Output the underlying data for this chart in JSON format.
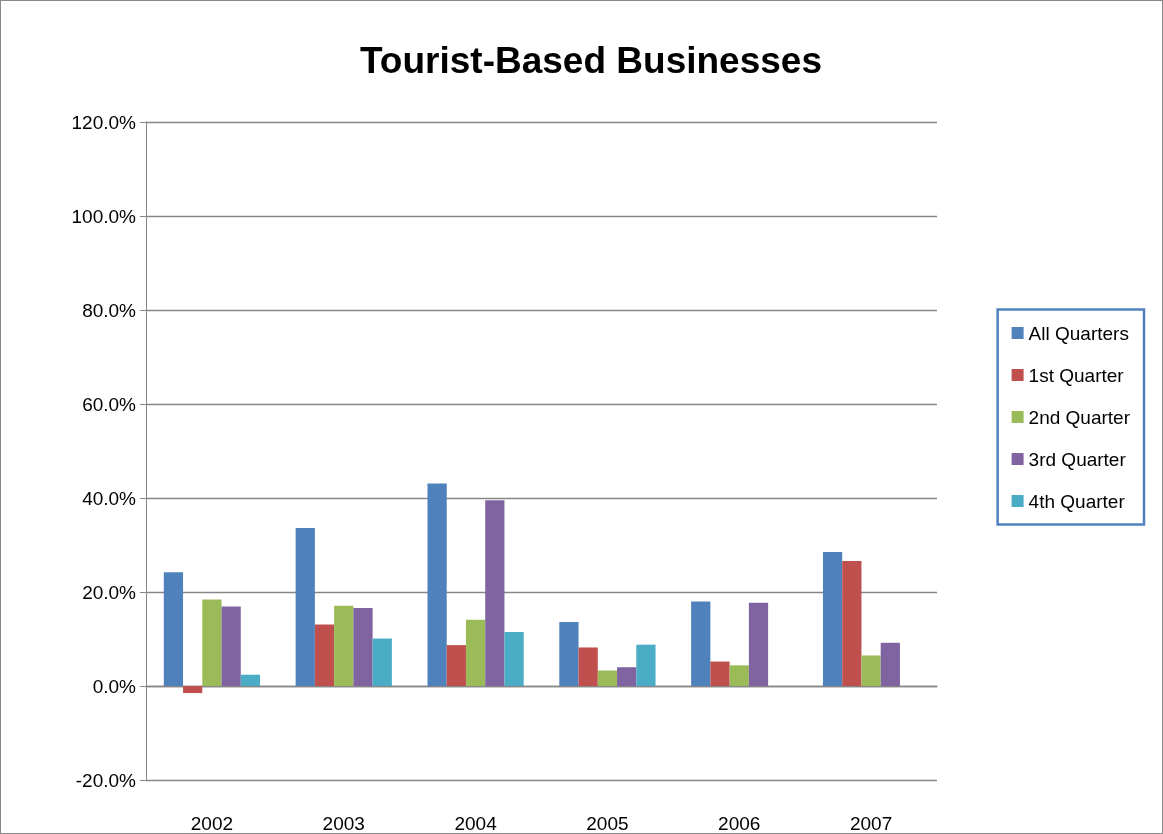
{
  "chart_data": {
    "type": "bar",
    "title": "Tourist-Based Businesses",
    "categories": [
      "2002",
      "2003",
      "2004",
      "2005",
      "2006",
      "2007"
    ],
    "series": [
      {
        "name": "All Quarters",
        "color": "#4f81bd",
        "values": [
          24.2,
          33.6,
          43.1,
          13.6,
          18.0,
          28.5
        ]
      },
      {
        "name": "1st Quarter",
        "color": "#c0504d",
        "values": [
          -1.5,
          13.1,
          8.7,
          8.2,
          5.2,
          26.6
        ]
      },
      {
        "name": "2nd Quarter",
        "color": "#9bbb59",
        "values": [
          18.4,
          17.1,
          14.1,
          3.3,
          4.4,
          6.5
        ]
      },
      {
        "name": "3rd Quarter",
        "color": "#8064a2",
        "values": [
          16.9,
          16.6,
          39.5,
          4.0,
          17.7,
          9.2
        ]
      },
      {
        "name": "4th Quarter",
        "color": "#4bacc6",
        "values": [
          2.4,
          10.1,
          11.5,
          8.8,
          null,
          null
        ]
      }
    ],
    "ylim": [
      -20,
      120
    ],
    "yticks": [
      {
        "value": -20,
        "label": "-20.0%"
      },
      {
        "value": 0,
        "label": "0.0%"
      },
      {
        "value": 20,
        "label": "20.0%"
      },
      {
        "value": 40,
        "label": "40.0%"
      },
      {
        "value": 60,
        "label": "60.0%"
      },
      {
        "value": 80,
        "label": "80.0%"
      },
      {
        "value": 100,
        "label": "100.0%"
      },
      {
        "value": 120,
        "label": "120.0%"
      }
    ],
    "grid": "y",
    "legend": "right"
  }
}
